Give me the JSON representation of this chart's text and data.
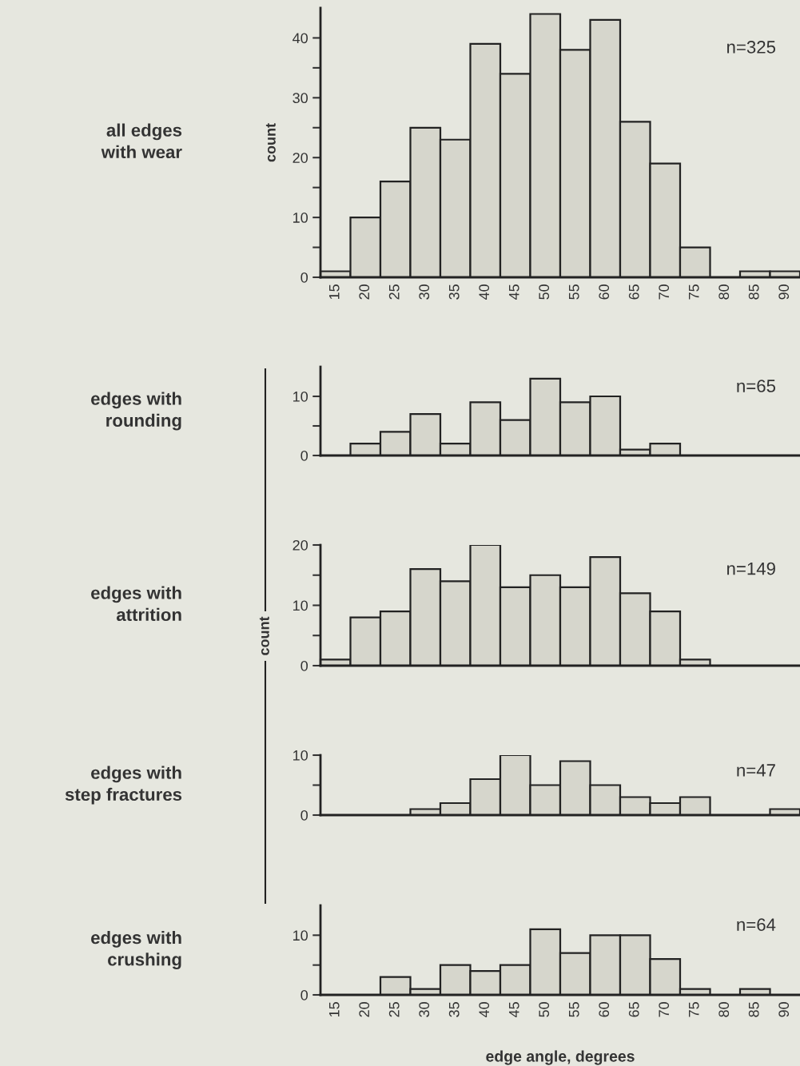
{
  "chart_data": [
    {
      "type": "bar",
      "ylabel": "count",
      "categories": [
        "15",
        "20",
        "25",
        "30",
        "35",
        "40",
        "45",
        "50",
        "55",
        "60",
        "65",
        "70",
        "75",
        "80",
        "85",
        "90"
      ],
      "values": [
        1,
        10,
        16,
        25,
        23,
        39,
        34,
        44,
        38,
        43,
        26,
        19,
        5,
        0,
        1,
        1
      ],
      "color": "#d6d6cc",
      "ylim": [
        0,
        45
      ],
      "yticks": [
        0,
        {
          "value": 5,
          "label": null
        },
        10,
        {
          "value": 15,
          "label": null
        },
        20,
        {
          "value": 25,
          "label": null
        },
        30,
        {
          "value": 35,
          "label": null
        },
        40
      ],
      "annotations": [
        "all edges\nwith wear",
        "n=325"
      ]
    },
    {
      "type": "bar",
      "categories": [
        "15",
        "20",
        "25",
        "30",
        "35",
        "40",
        "45",
        "50",
        "55",
        "60",
        "65",
        "70",
        "75",
        "80",
        "85",
        "90"
      ],
      "values": [
        0,
        2,
        4,
        7,
        2,
        9,
        6,
        13,
        9,
        10,
        1,
        2,
        0,
        0,
        0,
        0
      ],
      "color": "#d6d6cc",
      "ylim": [
        0,
        15
      ],
      "yticks": [
        0,
        {
          "value": 5,
          "label": null
        },
        10
      ],
      "annotations": [
        "edges with\nrounding",
        "n=65"
      ],
      "tick_labels": "y"
    },
    {
      "type": "bar",
      "ylabel": "count",
      "categories": [
        "15",
        "20",
        "25",
        "30",
        "35",
        "40",
        "45",
        "50",
        "55",
        "60",
        "65",
        "70",
        "75",
        "80",
        "85",
        "90"
      ],
      "values": [
        1,
        8,
        9,
        16,
        14,
        20,
        13,
        15,
        13,
        18,
        12,
        9,
        1,
        0,
        0,
        0
      ],
      "color": "#d6d6cc",
      "ylim": [
        0,
        20
      ],
      "yticks": [
        0,
        {
          "value": 5,
          "label": null
        },
        10,
        {
          "value": 15,
          "label": null
        },
        20
      ],
      "annotations": [
        "edges with\nattrition",
        "n=149"
      ],
      "tick_labels": "y"
    },
    {
      "type": "bar",
      "categories": [
        "15",
        "20",
        "25",
        "30",
        "35",
        "40",
        "45",
        "50",
        "55",
        "60",
        "65",
        "70",
        "75",
        "80",
        "85",
        "90"
      ],
      "values": [
        0,
        0,
        0,
        1,
        2,
        6,
        10,
        5,
        9,
        5,
        3,
        2,
        3,
        0,
        0,
        1
      ],
      "color": "#d6d6cc",
      "ylim": [
        0,
        10
      ],
      "yticks": [
        0,
        {
          "value": 5,
          "label": null
        },
        10
      ],
      "annotations": [
        "edges with\nstep fractures",
        "n=47"
      ],
      "tick_labels": "y"
    },
    {
      "type": "bar",
      "xlabel": "edge angle, degrees",
      "categories": [
        "15",
        "20",
        "25",
        "30",
        "35",
        "40",
        "45",
        "50",
        "55",
        "60",
        "65",
        "70",
        "75",
        "80",
        "85",
        "90"
      ],
      "values": [
        0,
        0,
        3,
        1,
        5,
        4,
        5,
        11,
        7,
        10,
        10,
        6,
        1,
        0,
        1,
        0
      ],
      "color": "#d6d6cc",
      "ylim": [
        0,
        15
      ],
      "yticks": [
        0,
        {
          "value": 5,
          "label": null
        },
        10
      ],
      "annotations": [
        "edges with\ncrushing",
        "n=64"
      ]
    }
  ]
}
